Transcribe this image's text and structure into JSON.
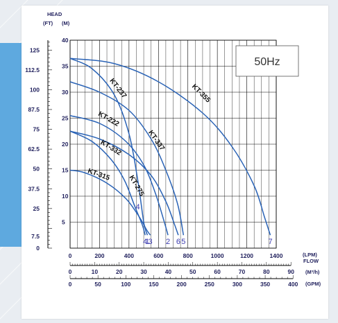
{
  "chart_data": {
    "type": "line",
    "frequency_label": "50Hz",
    "y_unit_head": "HEAD",
    "y_unit_ft": "(FT)",
    "y_unit_m": "(M)",
    "x_unit_lpm": "(LPM)",
    "x_unit_flow": "FLOW",
    "x_unit_m3h": "(M³/h)",
    "x_unit_gpm": "(GPM)",
    "ylim": [
      0,
      40
    ],
    "xlim": [
      0,
      1400
    ],
    "grid": true,
    "y_ticks_m": [
      "5",
      "10",
      "15",
      "20",
      "25",
      "30",
      "35",
      "40"
    ],
    "y_ticks_ft": [
      "0",
      "7.5",
      "25",
      "37.5",
      "50",
      "62.5",
      "75",
      "87.5",
      "100",
      "112.5",
      "125"
    ],
    "x_ticks_lpm": [
      "0",
      "200",
      "400",
      "600",
      "800",
      "1000",
      "1200",
      "1400"
    ],
    "x_ticks_m3h": [
      "0",
      "10",
      "20",
      "30",
      "40",
      "50",
      "60",
      "70",
      "80",
      "90"
    ],
    "x_ticks_gpm": [
      "0",
      "50",
      "100",
      "150",
      "200",
      "250",
      "300",
      "350",
      "400"
    ],
    "series": [
      {
        "name": "KT-237",
        "end_label": "1",
        "points": [
          [
            0,
            36.5
          ],
          [
            150,
            34.5
          ],
          [
            300,
            29.5
          ],
          [
            400,
            22
          ],
          [
            460,
            13
          ],
          [
            500,
            5
          ],
          [
            525,
            2.5
          ]
        ]
      },
      {
        "name": "KT-355",
        "end_label": "7",
        "points": [
          [
            0,
            36.5
          ],
          [
            300,
            35.5
          ],
          [
            600,
            32
          ],
          [
            900,
            26
          ],
          [
            1100,
            19.5
          ],
          [
            1250,
            12
          ],
          [
            1320,
            6
          ],
          [
            1360,
            2.5
          ]
        ]
      },
      {
        "name": "KT-337",
        "end_label": "5",
        "points": [
          [
            0,
            32
          ],
          [
            200,
            30
          ],
          [
            400,
            26.5
          ],
          [
            550,
            21
          ],
          [
            650,
            15
          ],
          [
            730,
            8.5
          ],
          [
            770,
            2.5
          ]
        ]
      },
      {
        "name": "KT-222",
        "end_label": "2",
        "points": [
          [
            0,
            25.5
          ],
          [
            200,
            24
          ],
          [
            380,
            20.5
          ],
          [
            500,
            16
          ],
          [
            580,
            10.5
          ],
          [
            640,
            5
          ],
          [
            665,
            2.5
          ]
        ]
      },
      {
        "name": "KT-332",
        "end_label": "6",
        "points": [
          [
            0,
            22.5
          ],
          [
            200,
            21
          ],
          [
            400,
            18
          ],
          [
            550,
            14
          ],
          [
            650,
            9
          ],
          [
            710,
            4.5
          ],
          [
            735,
            2.5
          ]
        ]
      },
      {
        "name": "KT-315",
        "end_label": "3",
        "points": [
          [
            0,
            15
          ],
          [
            100,
            14.5
          ],
          [
            250,
            12.5
          ],
          [
            380,
            9.5
          ],
          [
            470,
            6
          ],
          [
            520,
            3.5
          ],
          [
            545,
            2.5
          ]
        ]
      },
      {
        "name": "KT-275",
        "end_label": "4",
        "points": [
          [
            0,
            22.5
          ],
          [
            150,
            20.5
          ],
          [
            280,
            17
          ],
          [
            370,
            13
          ],
          [
            440,
            8
          ],
          [
            490,
            4.5
          ],
          [
            510,
            2.5
          ]
        ]
      }
    ],
    "stray_label": "4"
  }
}
